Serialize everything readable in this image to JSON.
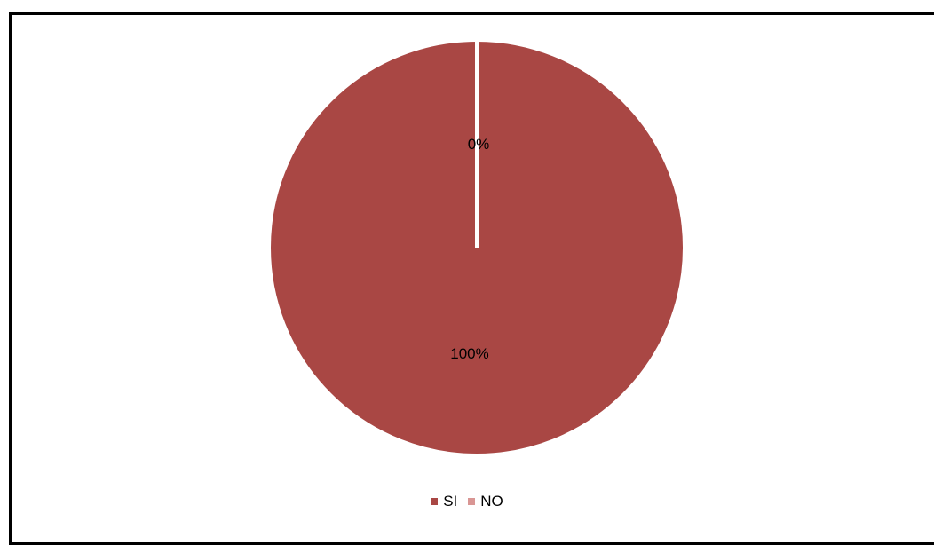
{
  "chart_data": {
    "type": "pie",
    "categories": [
      "SI",
      "NO"
    ],
    "values": [
      100,
      0
    ],
    "data_labels": [
      "100%",
      "0%"
    ],
    "colors": [
      "#a94744",
      "#d99694"
    ],
    "slice_border_color": "#ffffff",
    "legend_position": "bottom",
    "start_angle": "top",
    "direction": "clockwise"
  }
}
